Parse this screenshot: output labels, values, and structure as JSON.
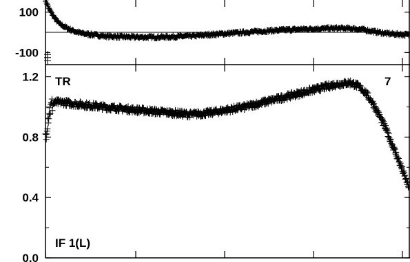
{
  "chart_data": [
    {
      "panel": "residual",
      "type": "scatter",
      "marker": "+",
      "color": "#000000",
      "yticks": [
        100,
        -100
      ],
      "ytick_labels": [
        "100",
        "-100"
      ],
      "ylim": [
        -160,
        160
      ],
      "xlim": [
        0,
        100
      ],
      "grid": false,
      "x": [
        0,
        0.5,
        1,
        2,
        3,
        4,
        6,
        8,
        10,
        13,
        16,
        20,
        25,
        30,
        35,
        40,
        45,
        50,
        55,
        60,
        65,
        70,
        75,
        80,
        85,
        88,
        91,
        94,
        97,
        100
      ],
      "y": [
        160,
        140,
        115,
        85,
        60,
        40,
        20,
        5,
        -5,
        -12,
        -18,
        -22,
        -24,
        -24,
        -22,
        -18,
        -12,
        -6,
        0,
        6,
        11,
        15,
        18,
        20,
        18,
        12,
        2,
        -6,
        -10,
        -12
      ],
      "outliers": {
        "x": [
          0,
          0,
          0
        ],
        "y": [
          -110,
          -125,
          -140
        ]
      }
    },
    {
      "panel": "main",
      "type": "scatter",
      "marker": "+",
      "color": "#000000",
      "label_left": "TR",
      "label_right": "7",
      "label_bottom": "IF 1(L)",
      "yticks": [
        1.2,
        0.8,
        0.4,
        0.0
      ],
      "ytick_labels": [
        "1.2",
        "0.8",
        "0.4",
        "0.0"
      ],
      "ylim": [
        0.0,
        1.28
      ],
      "xlim": [
        0,
        100
      ],
      "grid": false,
      "x": [
        0,
        0.5,
        1,
        2,
        3,
        5,
        8,
        12,
        16,
        20,
        25,
        30,
        35,
        40,
        45,
        50,
        55,
        60,
        65,
        70,
        75,
        80,
        84,
        86,
        88,
        90,
        92,
        94,
        96,
        98,
        100
      ],
      "y": [
        0.8,
        0.9,
        0.97,
        1.02,
        1.03,
        1.03,
        1.02,
        1.01,
        1.0,
        0.99,
        0.98,
        0.97,
        0.96,
        0.95,
        0.96,
        0.98,
        1.0,
        1.03,
        1.06,
        1.09,
        1.12,
        1.15,
        1.16,
        1.14,
        1.1,
        1.03,
        0.94,
        0.84,
        0.72,
        0.6,
        0.47
      ]
    }
  ]
}
